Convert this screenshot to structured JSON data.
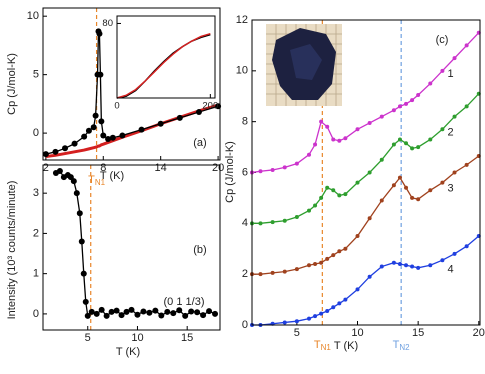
{
  "chart_data": [
    {
      "type": "line",
      "panel_label": "(a)",
      "y_label": "Cp (J/mol-K)",
      "x_label": "T (K)",
      "xlim": [
        1.7,
        20.2
      ],
      "ylim": [
        -2.3,
        10.7
      ],
      "xticks": [
        2,
        8,
        14,
        20
      ],
      "yticks": [
        0,
        5,
        10
      ],
      "x": [
        2,
        3,
        4,
        5,
        6,
        6.5,
        7,
        7.2,
        7.4,
        7.5,
        7.6,
        7.7,
        7.8,
        8,
        8.5,
        9,
        10,
        12,
        14,
        16,
        18,
        20
      ],
      "series": [
        {
          "color": "#d42020",
          "markers": false,
          "values": [
            -2.0,
            -1.9,
            -1.75,
            -1.6,
            -1.45,
            -1.35,
            -1.25,
            -1.2,
            -1.15,
            -1.1,
            -1.1,
            -1.05,
            -1.0,
            -0.95,
            -0.8,
            -0.65,
            -0.35,
            0.2,
            0.8,
            1.35,
            1.9,
            2.4
          ]
        },
        {
          "color": "#000000",
          "markers": true,
          "values": [
            -1.8,
            -1.6,
            -1.3,
            -0.9,
            -0.3,
            0.2,
            0.5,
            1.5,
            5.0,
            8.7,
            8.5,
            5.0,
            1.0,
            -0.2,
            -0.5,
            -0.4,
            -0.2,
            0.3,
            0.8,
            1.3,
            1.8,
            2.3
          ]
        }
      ],
      "vlines": [
        {
          "x": 7.3,
          "color": "#e8862a",
          "label": {
            "main": "T",
            "sub": "N1"
          }
        }
      ]
    },
    {
      "type": "line",
      "xlim": [
        0,
        210
      ],
      "ylim": [
        0,
        88
      ],
      "xticks": [
        0,
        200
      ],
      "yticks": [
        80
      ],
      "x": [
        0,
        20,
        40,
        60,
        80,
        100,
        120,
        140,
        160,
        180,
        200
      ],
      "series": [
        {
          "color": "#000000",
          "markers": false,
          "values": [
            0,
            2,
            8,
            18,
            29,
            39,
            48,
            55,
            61,
            65,
            68
          ]
        },
        {
          "color": "#d42020",
          "markers": false,
          "values": [
            0,
            3,
            9,
            18,
            28,
            38,
            47,
            55,
            61,
            66,
            69
          ]
        }
      ]
    },
    {
      "type": "line",
      "panel_label": "(b)",
      "annotation": "(0 1 1/3)",
      "y_label": "Intensity (10³ counts/minute)",
      "x_label": "T (K)",
      "xlim": [
        0.5,
        18.3
      ],
      "ylim": [
        -0.4,
        3.7
      ],
      "xticks": [
        5,
        10,
        15
      ],
      "yticks": [
        0,
        1,
        2,
        3
      ],
      "x": [
        1.8,
        2.2,
        2.6,
        3.0,
        3.3,
        3.6,
        3.9,
        4.2,
        4.4,
        4.6,
        4.8,
        5.0,
        5.4,
        5.9,
        6.4,
        6.9,
        7.4,
        7.9,
        8.4,
        8.9,
        9.4,
        10.0,
        10.6,
        11.2,
        11.8,
        12.4,
        13.0,
        13.6,
        14.2,
        14.8,
        15.4,
        16.0,
        16.6,
        17.2,
        17.8
      ],
      "series": [
        {
          "color": "#000000",
          "markers": true,
          "values": [
            3.5,
            3.55,
            3.4,
            3.45,
            3.4,
            3.3,
            3.0,
            2.5,
            1.8,
            1.0,
            0.3,
            -0.05,
            0.05,
            0.0,
            0.1,
            -0.05,
            0.05,
            0.08,
            -0.03,
            0.05,
            0.1,
            -0.02,
            0.06,
            0.03,
            0.08,
            -0.04,
            0.05,
            0.02,
            0.09,
            -0.05,
            0.06,
            0.04,
            -0.03,
            0.07,
            0.0
          ]
        }
      ],
      "vlines": [
        {
          "x": 5.3,
          "color": "#e8862a"
        }
      ]
    },
    {
      "type": "line",
      "panel_label": "(c)",
      "y_label": "Cp (J/mol-K)",
      "x_label": "T (K)",
      "xlim": [
        1.3,
        20.1
      ],
      "ylim": [
        0,
        12
      ],
      "xticks": [
        5,
        10,
        15,
        20
      ],
      "yticks": [
        0,
        2,
        4,
        6,
        8,
        10,
        12
      ],
      "x": [
        1.3,
        2,
        3,
        4,
        5,
        6,
        6.5,
        7,
        7.5,
        8,
        8.5,
        9,
        10,
        11,
        12,
        13,
        13.5,
        14,
        14.5,
        15,
        16,
        17,
        18,
        19,
        20
      ],
      "series": [
        {
          "name": "1",
          "color": "#cc33cc",
          "markers": true,
          "values": [
            6.0,
            6.05,
            6.1,
            6.2,
            6.35,
            6.7,
            7.1,
            8.0,
            7.8,
            7.3,
            7.25,
            7.35,
            7.7,
            7.95,
            8.2,
            8.45,
            8.6,
            8.7,
            8.85,
            9.05,
            9.5,
            10.0,
            10.5,
            11.0,
            11.5
          ]
        },
        {
          "name": "2",
          "color": "#2e9e2e",
          "markers": true,
          "values": [
            4.0,
            4.0,
            4.05,
            4.1,
            4.25,
            4.5,
            4.7,
            5.0,
            5.4,
            5.3,
            5.1,
            5.15,
            5.6,
            6.0,
            6.5,
            7.1,
            7.3,
            7.15,
            6.95,
            7.0,
            7.3,
            7.7,
            8.2,
            8.6,
            9.1
          ]
        },
        {
          "name": "3",
          "color": "#a0421e",
          "markers": true,
          "values": [
            2.0,
            2.0,
            2.05,
            2.1,
            2.2,
            2.35,
            2.4,
            2.45,
            2.6,
            2.75,
            2.9,
            3.0,
            3.5,
            4.2,
            4.9,
            5.5,
            5.8,
            5.4,
            5.0,
            4.95,
            5.3,
            5.6,
            6.0,
            6.3,
            6.65
          ]
        },
        {
          "name": "4",
          "color": "#1f3fe0",
          "markers": true,
          "values": [
            0.0,
            0.0,
            0.05,
            0.1,
            0.15,
            0.25,
            0.35,
            0.45,
            0.55,
            0.7,
            0.85,
            1.0,
            1.4,
            1.9,
            2.3,
            2.45,
            2.4,
            2.35,
            2.3,
            2.25,
            2.35,
            2.55,
            2.8,
            3.1,
            3.5
          ]
        }
      ],
      "vlines": [
        {
          "x": 7.1,
          "color": "#e8862a",
          "label": {
            "main": "T",
            "sub": "N1"
          }
        },
        {
          "x": 13.6,
          "color": "#6fa0e0",
          "label": {
            "main": "T",
            "sub": "N2"
          }
        }
      ]
    }
  ]
}
